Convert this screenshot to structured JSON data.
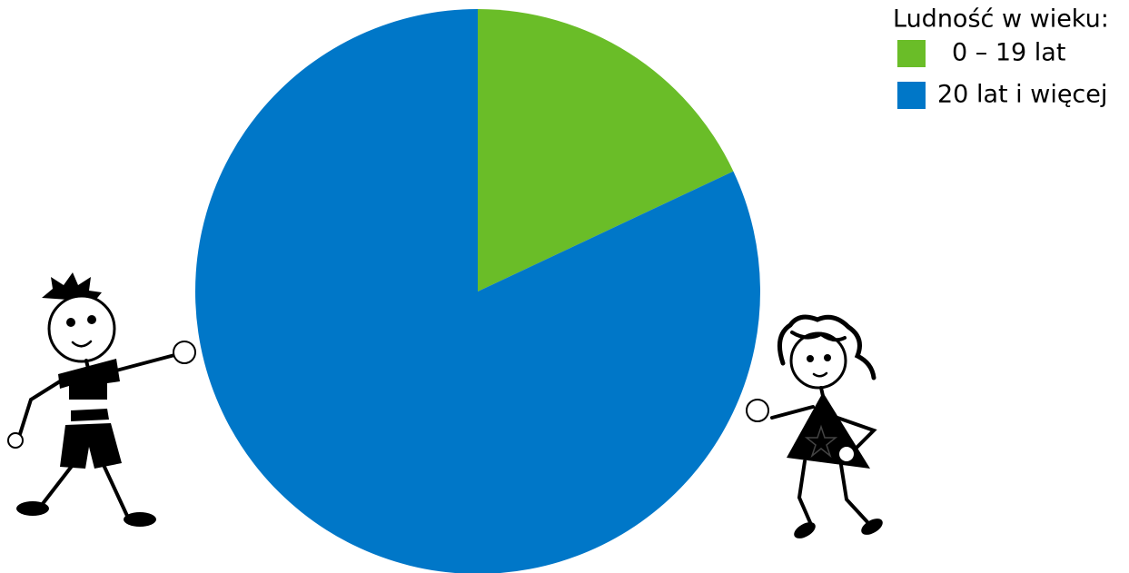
{
  "chart_data": {
    "type": "pie",
    "legend_title": "Ludność w wieku:",
    "categories": [
      "0 – 19 lat",
      "20 lat i więcej"
    ],
    "values": [
      18,
      82
    ],
    "colors": [
      "#6abd28",
      "#0077c8"
    ],
    "legend": "top-right"
  }
}
